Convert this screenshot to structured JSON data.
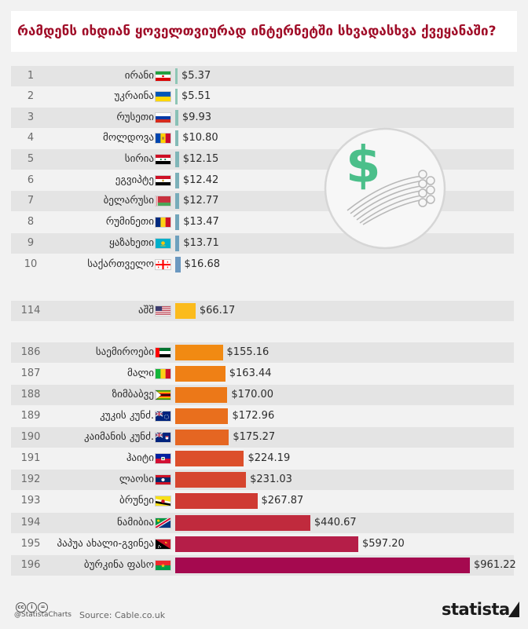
{
  "title": "რამდენს იხდიან ყოველთვიურად ინტერნეტში სხვადასხვა ქვეყანაში?",
  "chart_data": {
    "type": "bar",
    "orientation": "horizontal",
    "rows": [
      {
        "rank": "1",
        "country": "ირანი",
        "flag": "iran",
        "value": 5.37,
        "label": "$5.37",
        "color": "#8fc6b6"
      },
      {
        "rank": "2",
        "country": "უკრაინა",
        "flag": "ukraine",
        "value": 5.51,
        "label": "$5.51",
        "color": "#8fc6b6"
      },
      {
        "rank": "3",
        "country": "რუსეთი",
        "flag": "russia",
        "value": 9.93,
        "label": "$9.93",
        "color": "#89c1b6"
      },
      {
        "rank": "4",
        "country": "მოლდოვა",
        "flag": "moldova",
        "value": 10.8,
        "label": "$10.80",
        "color": "#84bbb7"
      },
      {
        "rank": "5",
        "country": "სირია",
        "flag": "syria",
        "value": 12.15,
        "label": "$12.15",
        "color": "#80b6b8"
      },
      {
        "rank": "6",
        "country": "ეგვიპტე",
        "flag": "egypt",
        "value": 12.42,
        "label": "$12.42",
        "color": "#7cb1b9"
      },
      {
        "rank": "7",
        "country": "ბელარუსი",
        "flag": "belarus",
        "value": 12.77,
        "label": "$12.77",
        "color": "#77acba"
      },
      {
        "rank": "8",
        "country": "რუმინეთი",
        "flag": "romania",
        "value": 13.47,
        "label": "$13.47",
        "color": "#73a6bb"
      },
      {
        "rank": "9",
        "country": "ყაზახეთი",
        "flag": "kazakhstan",
        "value": 13.71,
        "label": "$13.71",
        "color": "#6ea0bd"
      },
      {
        "rank": "10",
        "country": "საქართველო",
        "flag": "georgia",
        "value": 16.68,
        "label": "$16.68",
        "color": "#6b98c0"
      },
      {
        "rank": "114",
        "country": "აშშ",
        "flag": "usa",
        "value": 66.17,
        "label": "$66.17",
        "color": "#fbbb1c"
      },
      {
        "rank": "186",
        "country": "საემიროები",
        "flag": "uae",
        "value": 155.16,
        "label": "$155.16",
        "color": "#f18a12"
      },
      {
        "rank": "187",
        "country": "მალი",
        "flag": "mali",
        "value": 163.44,
        "label": "$163.44",
        "color": "#ef8015"
      },
      {
        "rank": "188",
        "country": "ზიმბაბვე",
        "flag": "zimbabwe",
        "value": 170.0,
        "label": "$170.00",
        "color": "#ec7818"
      },
      {
        "rank": "189",
        "country": "კუკის კუნძ.",
        "flag": "cook",
        "value": 172.96,
        "label": "$172.96",
        "color": "#e96f1d"
      },
      {
        "rank": "190",
        "country": "კაიმანის კუნძ.",
        "flag": "cayman",
        "value": 175.27,
        "label": "$175.27",
        "color": "#e56622"
      },
      {
        "rank": "191",
        "country": "ჰაიტი",
        "flag": "haiti",
        "value": 224.19,
        "label": "$224.19",
        "color": "#dc4f2b"
      },
      {
        "rank": "192",
        "country": "ლაოსი",
        "flag": "laos",
        "value": 231.03,
        "label": "$231.03",
        "color": "#d6452e"
      },
      {
        "rank": "193",
        "country": "ბრუნეი",
        "flag": "brunei",
        "value": 267.87,
        "label": "$267.87",
        "color": "#cf3a33"
      },
      {
        "rank": "194",
        "country": "ნამიბია",
        "flag": "namibia",
        "value": 440.67,
        "label": "$440.67",
        "color": "#c02a3d"
      },
      {
        "rank": "195",
        "country": "პაპუა ახალი-გვინეა",
        "flag": "png",
        "value": 597.2,
        "label": "$597.20",
        "color": "#b51e48"
      },
      {
        "rank": "196",
        "country": "ბურკინა ფასო",
        "flag": "burkina",
        "value": 961.22,
        "label": "$961.22",
        "color": "#a5094f"
      }
    ],
    "xlim": [
      0,
      961.22
    ],
    "grid": false,
    "legend": "none"
  },
  "illustration": {
    "icon": "dollar-cable-icon",
    "symbol": "$"
  },
  "footer": {
    "license_icons": [
      "cc-icon",
      "by-icon",
      "nd-icon"
    ],
    "license_glyphs": [
      "cc",
      "i",
      "="
    ],
    "handle": "@StatistaCharts",
    "source": "Source: Cable.co.uk",
    "brand": "statista"
  }
}
